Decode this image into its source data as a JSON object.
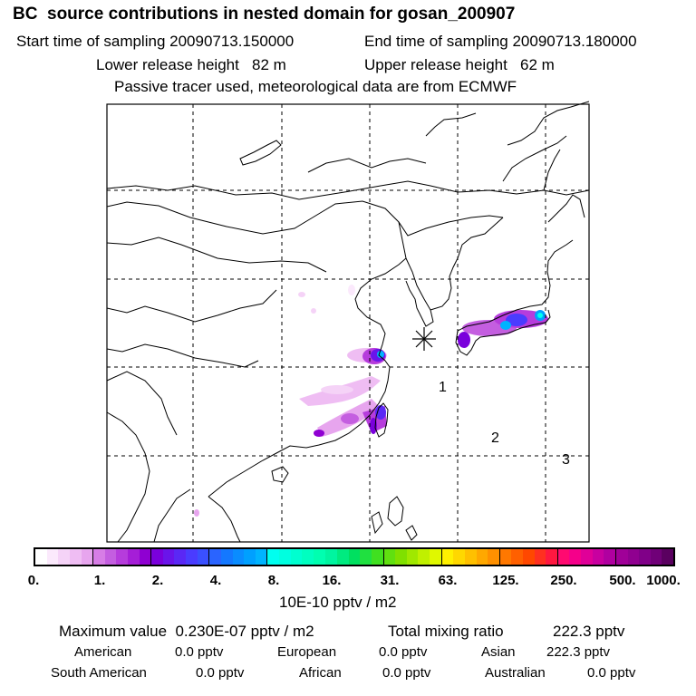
{
  "header": {
    "title": "BC  source contributions in nested domain for gosan_200907",
    "start_label": "Start time of sampling 20090713.150000",
    "end_label": "End time of sampling 20090713.180000",
    "lower_label": "Lower release height   82 m",
    "upper_label": "Upper release height   62 m",
    "passive_label": "Passive tracer used, meteorological data are from ECMWF"
  },
  "map": {
    "markers": [
      "1",
      "2",
      "3"
    ],
    "release_site_symbol": "asterisk"
  },
  "colorbar": {
    "ticks": [
      "0.",
      "1.",
      "2.",
      "4.",
      "8.",
      "16.",
      "31.",
      "63.",
      "125.",
      "250.",
      "500.",
      "1000."
    ],
    "colors": [
      [
        "#ffffff",
        "#fbe9fc",
        "#f5d3f7",
        "#efbdf3",
        "#e7a5ee"
      ],
      [
        "#d77de6",
        "#c45ee0",
        "#b63cdc",
        "#a51ed7",
        "#8f00d2"
      ],
      [
        "#7a00dc",
        "#6a14ea",
        "#5a28f5",
        "#4a3cff",
        "#3a50ff"
      ],
      [
        "#2a64ff",
        "#1478ff",
        "#0a8cff",
        "#00a0ff",
        "#00b4ff"
      ],
      [
        "#00fff0",
        "#00ffe0",
        "#00ffd0",
        "#00ffc0",
        "#00ffb0"
      ],
      [
        "#00f5a0",
        "#00eb80",
        "#00e060",
        "#20e040",
        "#40e020"
      ],
      [
        "#60e010",
        "#80e000",
        "#a0e800",
        "#c0f000",
        "#e0f800"
      ],
      [
        "#fff000",
        "#ffd800",
        "#ffc000",
        "#ffa800",
        "#ff9000"
      ],
      [
        "#ff7800",
        "#ff6000",
        "#ff4800",
        "#ff3020",
        "#ff1840"
      ],
      [
        "#ff0a70",
        "#f5008a",
        "#e00098",
        "#c800a0",
        "#b000a0"
      ],
      [
        "#a00098",
        "#900090",
        "#800088",
        "#700078",
        "#5a0060"
      ]
    ],
    "unit": "10E-10 pptv / m2"
  },
  "summary": {
    "max_label": "Maximum value  0.230E-07 pptv / m2",
    "total_label": "Total mixing ratio",
    "total_value": "222.3 pptv",
    "regions": [
      {
        "name": "American",
        "value": "0.0 pptv"
      },
      {
        "name": "European",
        "value": "0.0 pptv"
      },
      {
        "name": "Asian",
        "value": "222.3 pptv"
      },
      {
        "name": "South American",
        "value": "0.0 pptv"
      },
      {
        "name": "African",
        "value": "0.0 pptv"
      },
      {
        "name": "Australian",
        "value": "0.0 pptv"
      }
    ]
  }
}
